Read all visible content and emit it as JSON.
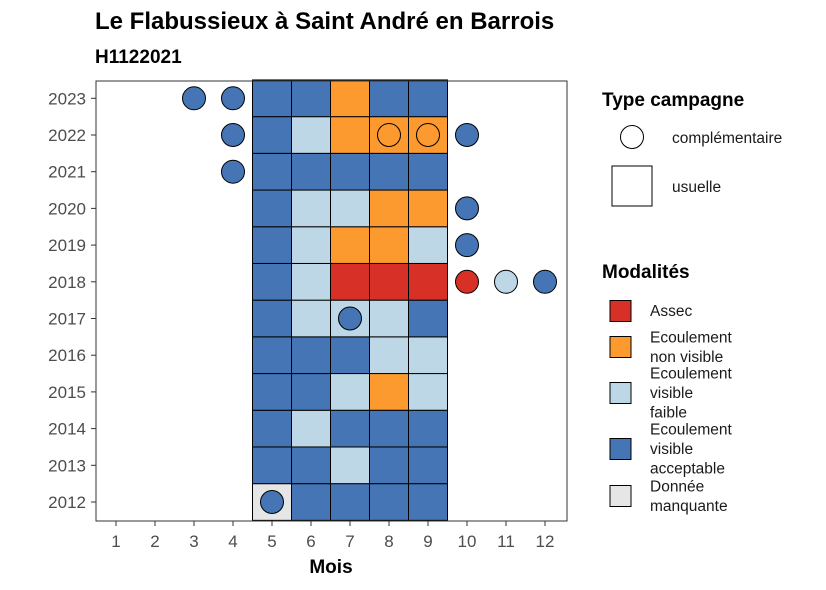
{
  "chart_data": {
    "type": "heatmap",
    "title": "Le Flabussieux à Saint André en Barrois",
    "subtitle": "H1122021",
    "xlabel": "Mois",
    "x_ticks": [
      "1",
      "2",
      "3",
      "4",
      "5",
      "6",
      "7",
      "8",
      "9",
      "10",
      "11",
      "12"
    ],
    "y_ticks": [
      "2012",
      "2013",
      "2014",
      "2015",
      "2016",
      "2017",
      "2018",
      "2019",
      "2020",
      "2021",
      "2022",
      "2023"
    ],
    "xlim": [
      0.5,
      12.5
    ],
    "grid": false,
    "colors": {
      "Assec": "#d73027",
      "Ecoulement non visible": "#fd9a2f",
      "Ecoulement visible faible": "#bdd7e7",
      "Ecoulement visible acceptable": "#4575b4",
      "Donnée manquante": "#e6e6e6"
    },
    "legend_campaign": {
      "title": "Type campagne",
      "position": "right",
      "items": [
        {
          "label": "complémentaire",
          "shape": "circle"
        },
        {
          "label": "usuelle",
          "shape": "square"
        }
      ]
    },
    "legend_modalites": {
      "title": "Modalités",
      "position": "right",
      "items": [
        {
          "key": "Assec",
          "lines": [
            "Assec"
          ]
        },
        {
          "key": "Ecoulement non visible",
          "lines": [
            "Ecoulement",
            "non visible"
          ]
        },
        {
          "key": "Ecoulement visible faible",
          "lines": [
            "Ecoulement",
            "visible",
            "faible"
          ]
        },
        {
          "key": "Ecoulement visible acceptable",
          "lines": [
            "Ecoulement",
            "visible",
            "acceptable"
          ]
        },
        {
          "key": "Donnée manquante",
          "lines": [
            "Donnée",
            "manquante"
          ]
        }
      ]
    },
    "usuelle": [
      {
        "year": 2012,
        "month": 5,
        "modalite": "Donnée manquante"
      },
      {
        "year": 2012,
        "month": 6,
        "modalite": "Ecoulement visible acceptable"
      },
      {
        "year": 2012,
        "month": 7,
        "modalite": "Ecoulement visible acceptable"
      },
      {
        "year": 2012,
        "month": 8,
        "modalite": "Ecoulement visible acceptable"
      },
      {
        "year": 2012,
        "month": 9,
        "modalite": "Ecoulement visible acceptable"
      },
      {
        "year": 2013,
        "month": 5,
        "modalite": "Ecoulement visible acceptable"
      },
      {
        "year": 2013,
        "month": 6,
        "modalite": "Ecoulement visible acceptable"
      },
      {
        "year": 2013,
        "month": 7,
        "modalite": "Ecoulement visible faible"
      },
      {
        "year": 2013,
        "month": 8,
        "modalite": "Ecoulement visible acceptable"
      },
      {
        "year": 2013,
        "month": 9,
        "modalite": "Ecoulement visible acceptable"
      },
      {
        "year": 2014,
        "month": 5,
        "modalite": "Ecoulement visible acceptable"
      },
      {
        "year": 2014,
        "month": 6,
        "modalite": "Ecoulement visible faible"
      },
      {
        "year": 2014,
        "month": 7,
        "modalite": "Ecoulement visible acceptable"
      },
      {
        "year": 2014,
        "month": 8,
        "modalite": "Ecoulement visible acceptable"
      },
      {
        "year": 2014,
        "month": 9,
        "modalite": "Ecoulement visible acceptable"
      },
      {
        "year": 2015,
        "month": 5,
        "modalite": "Ecoulement visible acceptable"
      },
      {
        "year": 2015,
        "month": 6,
        "modalite": "Ecoulement visible acceptable"
      },
      {
        "year": 2015,
        "month": 7,
        "modalite": "Ecoulement visible faible"
      },
      {
        "year": 2015,
        "month": 8,
        "modalite": "Ecoulement non visible"
      },
      {
        "year": 2015,
        "month": 9,
        "modalite": "Ecoulement visible faible"
      },
      {
        "year": 2016,
        "month": 5,
        "modalite": "Ecoulement visible acceptable"
      },
      {
        "year": 2016,
        "month": 6,
        "modalite": "Ecoulement visible acceptable"
      },
      {
        "year": 2016,
        "month": 7,
        "modalite": "Ecoulement visible acceptable"
      },
      {
        "year": 2016,
        "month": 8,
        "modalite": "Ecoulement visible faible"
      },
      {
        "year": 2016,
        "month": 9,
        "modalite": "Ecoulement visible faible"
      },
      {
        "year": 2017,
        "month": 5,
        "modalite": "Ecoulement visible acceptable"
      },
      {
        "year": 2017,
        "month": 6,
        "modalite": "Ecoulement visible faible"
      },
      {
        "year": 2017,
        "month": 7,
        "modalite": "Ecoulement visible faible"
      },
      {
        "year": 2017,
        "month": 8,
        "modalite": "Ecoulement visible faible"
      },
      {
        "year": 2017,
        "month": 9,
        "modalite": "Ecoulement visible acceptable"
      },
      {
        "year": 2018,
        "month": 5,
        "modalite": "Ecoulement visible acceptable"
      },
      {
        "year": 2018,
        "month": 6,
        "modalite": "Ecoulement visible faible"
      },
      {
        "year": 2018,
        "month": 7,
        "modalite": "Assec"
      },
      {
        "year": 2018,
        "month": 8,
        "modalite": "Assec"
      },
      {
        "year": 2018,
        "month": 9,
        "modalite": "Assec"
      },
      {
        "year": 2019,
        "month": 5,
        "modalite": "Ecoulement visible acceptable"
      },
      {
        "year": 2019,
        "month": 6,
        "modalite": "Ecoulement visible faible"
      },
      {
        "year": 2019,
        "month": 7,
        "modalite": "Ecoulement non visible"
      },
      {
        "year": 2019,
        "month": 8,
        "modalite": "Ecoulement non visible"
      },
      {
        "year": 2019,
        "month": 9,
        "modalite": "Ecoulement visible faible"
      },
      {
        "year": 2020,
        "month": 5,
        "modalite": "Ecoulement visible acceptable"
      },
      {
        "year": 2020,
        "month": 6,
        "modalite": "Ecoulement visible faible"
      },
      {
        "year": 2020,
        "month": 7,
        "modalite": "Ecoulement visible faible"
      },
      {
        "year": 2020,
        "month": 8,
        "modalite": "Ecoulement non visible"
      },
      {
        "year": 2020,
        "month": 9,
        "modalite": "Ecoulement non visible"
      },
      {
        "year": 2021,
        "month": 5,
        "modalite": "Ecoulement visible acceptable"
      },
      {
        "year": 2021,
        "month": 6,
        "modalite": "Ecoulement visible acceptable"
      },
      {
        "year": 2021,
        "month": 7,
        "modalite": "Ecoulement visible acceptable"
      },
      {
        "year": 2021,
        "month": 8,
        "modalite": "Ecoulement visible acceptable"
      },
      {
        "year": 2021,
        "month": 9,
        "modalite": "Ecoulement visible acceptable"
      },
      {
        "year": 2022,
        "month": 5,
        "modalite": "Ecoulement visible acceptable"
      },
      {
        "year": 2022,
        "month": 6,
        "modalite": "Ecoulement visible faible"
      },
      {
        "year": 2022,
        "month": 7,
        "modalite": "Ecoulement non visible"
      },
      {
        "year": 2022,
        "month": 8,
        "modalite": "Ecoulement non visible"
      },
      {
        "year": 2022,
        "month": 9,
        "modalite": "Ecoulement non visible"
      },
      {
        "year": 2023,
        "month": 5,
        "modalite": "Ecoulement visible acceptable"
      },
      {
        "year": 2023,
        "month": 6,
        "modalite": "Ecoulement visible acceptable"
      },
      {
        "year": 2023,
        "month": 7,
        "modalite": "Ecoulement non visible"
      },
      {
        "year": 2023,
        "month": 8,
        "modalite": "Ecoulement visible acceptable"
      },
      {
        "year": 2023,
        "month": 9,
        "modalite": "Ecoulement visible acceptable"
      }
    ],
    "complementaire": [
      {
        "year": 2012,
        "month": 5,
        "modalite": "Ecoulement visible acceptable"
      },
      {
        "year": 2017,
        "month": 7,
        "modalite": "Ecoulement visible acceptable"
      },
      {
        "year": 2018,
        "month": 10,
        "modalite": "Assec"
      },
      {
        "year": 2018,
        "month": 11,
        "modalite": "Ecoulement visible faible"
      },
      {
        "year": 2018,
        "month": 12,
        "modalite": "Ecoulement visible acceptable"
      },
      {
        "year": 2019,
        "month": 10,
        "modalite": "Ecoulement visible acceptable"
      },
      {
        "year": 2020,
        "month": 10,
        "modalite": "Ecoulement visible acceptable"
      },
      {
        "year": 2021,
        "month": 4,
        "modalite": "Ecoulement visible acceptable"
      },
      {
        "year": 2022,
        "month": 4,
        "modalite": "Ecoulement visible acceptable"
      },
      {
        "year": 2022,
        "month": 8,
        "modalite": "Ecoulement non visible"
      },
      {
        "year": 2022,
        "month": 9,
        "modalite": "Ecoulement non visible"
      },
      {
        "year": 2022,
        "month": 10,
        "modalite": "Ecoulement visible acceptable"
      },
      {
        "year": 2023,
        "month": 3,
        "modalite": "Ecoulement visible acceptable"
      },
      {
        "year": 2023,
        "month": 4,
        "modalite": "Ecoulement visible acceptable"
      }
    ]
  }
}
